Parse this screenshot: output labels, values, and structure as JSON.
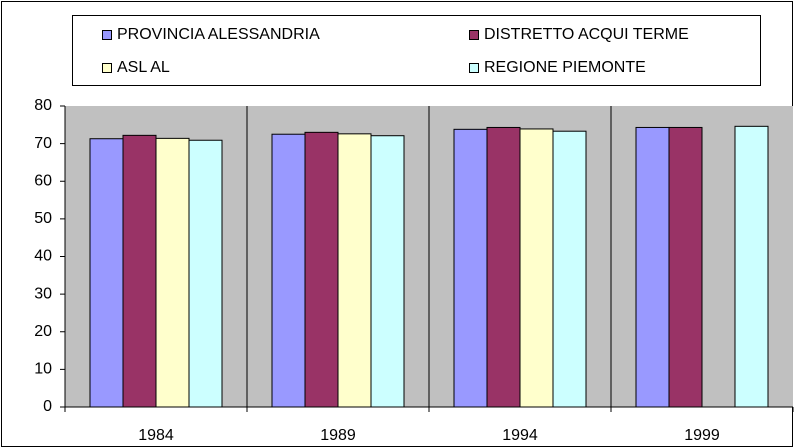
{
  "chart_data": {
    "type": "bar",
    "categories": [
      "1984",
      "1989",
      "1994",
      "1999"
    ],
    "series": [
      {
        "name": "PROVINCIA ALESSANDRIA",
        "color": "#9999ff",
        "values": [
          71.3,
          72.5,
          73.8,
          74.3
        ]
      },
      {
        "name": "DISTRETTO ACQUI TERME",
        "color": "#993366",
        "values": [
          72.2,
          73.0,
          74.3,
          74.3
        ]
      },
      {
        "name": "ASL AL",
        "color": "#ffffcc",
        "values": [
          71.4,
          72.6,
          73.9,
          null
        ]
      },
      {
        "name": "REGIONE PIEMONTE",
        "color": "#ccffff",
        "values": [
          70.9,
          72.1,
          73.3,
          74.6
        ]
      }
    ],
    "ylim": [
      0,
      80
    ],
    "yticks": [
      0,
      10,
      20,
      30,
      40,
      50,
      60,
      70,
      80
    ],
    "grid": false,
    "legend": "top",
    "plot_background": "#c0c0c0"
  }
}
